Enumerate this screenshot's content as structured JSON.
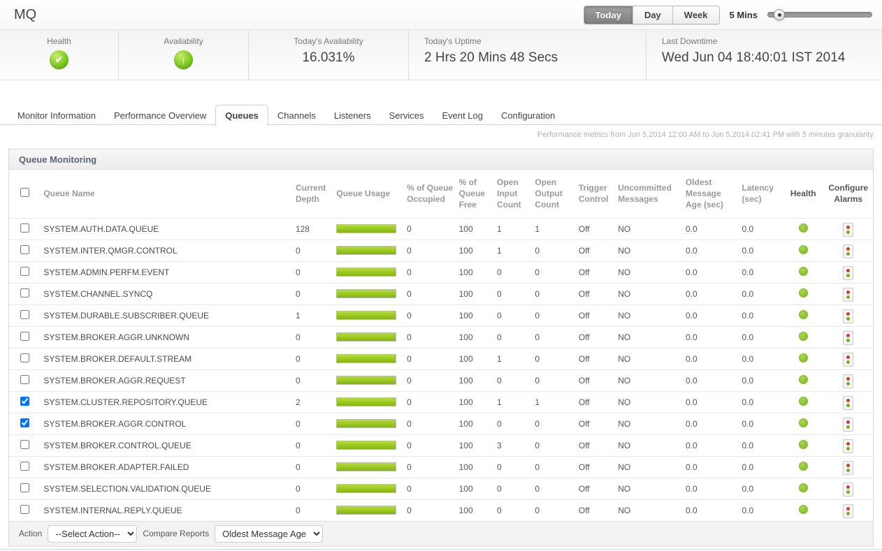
{
  "header": {
    "title": "MQ",
    "time_range_buttons": [
      {
        "label": "Today",
        "active": true
      },
      {
        "label": "Day",
        "active": false
      },
      {
        "label": "Week",
        "active": false
      }
    ],
    "granularity_label": "5 Mins",
    "slider_position_percent": 6
  },
  "stats": {
    "health": {
      "label": "Health",
      "status": "good",
      "icon": "check-circle"
    },
    "availability": {
      "label": "Availability",
      "status": "up",
      "icon": "up-arrow-circle"
    },
    "todays_availability": {
      "label": "Today's Availability",
      "value": "16.031%"
    },
    "todays_uptime": {
      "label": "Today's Uptime",
      "value": "2 Hrs 20 Mins 48 Secs"
    },
    "last_downtime": {
      "label": "Last Downtime",
      "value": "Wed Jun 04 18:40:01 IST 2014"
    }
  },
  "tabs": [
    {
      "label": "Monitor Information",
      "active": false
    },
    {
      "label": "Performance Overview",
      "active": false
    },
    {
      "label": "Queues",
      "active": true
    },
    {
      "label": "Channels",
      "active": false
    },
    {
      "label": "Listeners",
      "active": false
    },
    {
      "label": "Services",
      "active": false
    },
    {
      "label": "Event Log",
      "active": false
    },
    {
      "label": "Configuration",
      "active": false
    }
  ],
  "metrics_note": "Performance metrics from Jun 5,2014 12:00 AM to Jun 5,2014 02:41 PM with 5 minutes granularity",
  "table": {
    "title": "Queue Monitoring",
    "columns": [
      "Queue Name",
      "Current Depth",
      "Queue Usage",
      "% of Queue Occupied",
      "% of Queue Free",
      "Open Input Count",
      "Open Output Count",
      "Trigger Control",
      "Uncommitted Messages",
      "Oldest Message Age (sec)",
      "Latency (sec)",
      "Health",
      "Configure Alarms"
    ],
    "rows": [
      {
        "checked": false,
        "name": "SYSTEM.AUTH.DATA.QUEUE",
        "current_depth": "128",
        "usage_percent": 100,
        "pct_occupied": "0",
        "pct_free": "100",
        "open_input": "1",
        "open_output": "1",
        "trigger": "Off",
        "uncommitted": "NO",
        "oldest_age": "0.0",
        "latency": "0.0",
        "health": "green"
      },
      {
        "checked": false,
        "name": "SYSTEM.INTER.QMGR.CONTROL",
        "current_depth": "0",
        "usage_percent": 100,
        "pct_occupied": "0",
        "pct_free": "100",
        "open_input": "1",
        "open_output": "0",
        "trigger": "Off",
        "uncommitted": "NO",
        "oldest_age": "0.0",
        "latency": "0.0",
        "health": "green"
      },
      {
        "checked": false,
        "name": "SYSTEM.ADMIN.PERFM.EVENT",
        "current_depth": "0",
        "usage_percent": 100,
        "pct_occupied": "0",
        "pct_free": "100",
        "open_input": "0",
        "open_output": "0",
        "trigger": "Off",
        "uncommitted": "NO",
        "oldest_age": "0.0",
        "latency": "0.0",
        "health": "green"
      },
      {
        "checked": false,
        "name": "SYSTEM.CHANNEL.SYNCQ",
        "current_depth": "0",
        "usage_percent": 100,
        "pct_occupied": "0",
        "pct_free": "100",
        "open_input": "0",
        "open_output": "0",
        "trigger": "Off",
        "uncommitted": "NO",
        "oldest_age": "0.0",
        "latency": "0.0",
        "health": "green"
      },
      {
        "checked": false,
        "name": "SYSTEM.DURABLE.SUBSCRIBER.QUEUE",
        "current_depth": "1",
        "usage_percent": 100,
        "pct_occupied": "0",
        "pct_free": "100",
        "open_input": "0",
        "open_output": "0",
        "trigger": "Off",
        "uncommitted": "NO",
        "oldest_age": "0.0",
        "latency": "0.0",
        "health": "green"
      },
      {
        "checked": false,
        "name": "SYSTEM.BROKER.AGGR.UNKNOWN",
        "current_depth": "0",
        "usage_percent": 100,
        "pct_occupied": "0",
        "pct_free": "100",
        "open_input": "0",
        "open_output": "0",
        "trigger": "Off",
        "uncommitted": "NO",
        "oldest_age": "0.0",
        "latency": "0.0",
        "health": "green"
      },
      {
        "checked": false,
        "name": "SYSTEM.BROKER.DEFAULT.STREAM",
        "current_depth": "0",
        "usage_percent": 100,
        "pct_occupied": "0",
        "pct_free": "100",
        "open_input": "1",
        "open_output": "0",
        "trigger": "Off",
        "uncommitted": "NO",
        "oldest_age": "0.0",
        "latency": "0.0",
        "health": "green"
      },
      {
        "checked": false,
        "name": "SYSTEM.BROKER.AGGR.REQUEST",
        "current_depth": "0",
        "usage_percent": 100,
        "pct_occupied": "0",
        "pct_free": "100",
        "open_input": "0",
        "open_output": "0",
        "trigger": "Off",
        "uncommitted": "NO",
        "oldest_age": "0.0",
        "latency": "0.0",
        "health": "green"
      },
      {
        "checked": true,
        "name": "SYSTEM.CLUSTER.REPOSITORY.QUEUE",
        "current_depth": "2",
        "usage_percent": 100,
        "pct_occupied": "0",
        "pct_free": "100",
        "open_input": "1",
        "open_output": "1",
        "trigger": "Off",
        "uncommitted": "NO",
        "oldest_age": "0.0",
        "latency": "0.0",
        "health": "green"
      },
      {
        "checked": true,
        "name": "SYSTEM.BROKER.AGGR.CONTROL",
        "current_depth": "0",
        "usage_percent": 100,
        "pct_occupied": "0",
        "pct_free": "100",
        "open_input": "0",
        "open_output": "0",
        "trigger": "Off",
        "uncommitted": "NO",
        "oldest_age": "0.0",
        "latency": "0.0",
        "health": "green"
      },
      {
        "checked": false,
        "name": "SYSTEM.BROKER.CONTROL.QUEUE",
        "current_depth": "0",
        "usage_percent": 100,
        "pct_occupied": "0",
        "pct_free": "100",
        "open_input": "3",
        "open_output": "0",
        "trigger": "Off",
        "uncommitted": "NO",
        "oldest_age": "0.0",
        "latency": "0.0",
        "health": "green"
      },
      {
        "checked": false,
        "name": "SYSTEM.BROKER.ADAPTER.FAILED",
        "current_depth": "0",
        "usage_percent": 100,
        "pct_occupied": "0",
        "pct_free": "100",
        "open_input": "0",
        "open_output": "0",
        "trigger": "Off",
        "uncommitted": "NO",
        "oldest_age": "0.0",
        "latency": "0.0",
        "health": "green"
      },
      {
        "checked": false,
        "name": "SYSTEM.SELECTION.VALIDATION.QUEUE",
        "current_depth": "0",
        "usage_percent": 100,
        "pct_occupied": "0",
        "pct_free": "100",
        "open_input": "0",
        "open_output": "0",
        "trigger": "Off",
        "uncommitted": "NO",
        "oldest_age": "0.0",
        "latency": "0.0",
        "health": "green"
      },
      {
        "checked": false,
        "name": "SYSTEM.INTERNAL.REPLY.QUEUE",
        "current_depth": "0",
        "usage_percent": 100,
        "pct_occupied": "0",
        "pct_free": "100",
        "open_input": "0",
        "open_output": "0",
        "trigger": "Off",
        "uncommitted": "NO",
        "oldest_age": "0.0",
        "latency": "0.0",
        "health": "green"
      }
    ]
  },
  "footer": {
    "action_label": "Action",
    "action_selected": "--Select Action--",
    "compare_label": "Compare Reports",
    "compare_selected": "Oldest Message Age"
  },
  "colors": {
    "usage_bar_green": "#8ab80e",
    "health_dot_green": "#8cc832",
    "alarm_red": "#d23c2a",
    "alarm_green": "#77b20c",
    "active_button_gray": "#8a8a8a"
  }
}
